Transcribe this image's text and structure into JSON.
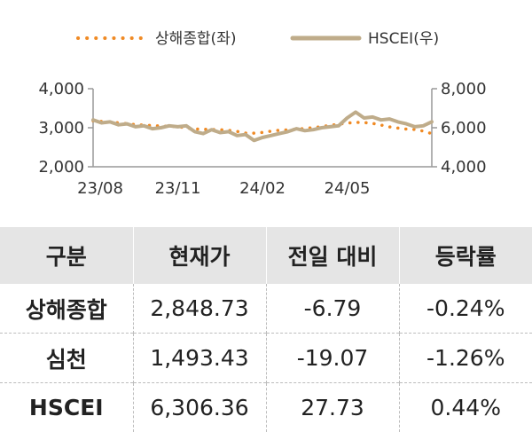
{
  "chart_data": {
    "type": "line",
    "legend": [
      {
        "name": "상해종합(좌)",
        "color": "#f08a24",
        "style": "dotted"
      },
      {
        "name": "HSCEI(우)",
        "color": "#bfac8a",
        "style": "solid"
      }
    ],
    "x_tick_labels": [
      "23/08",
      "23/11",
      "24/02",
      "24/05"
    ],
    "y_left_ticks": [
      "4,000",
      "3,000",
      "2,000"
    ],
    "y_right_ticks": [
      "8,000",
      "6,000",
      "4,000"
    ],
    "y_left_range": [
      2000,
      4000
    ],
    "y_right_range": [
      4000,
      8000
    ],
    "x_range_months": [
      0,
      12
    ],
    "series": [
      {
        "name": "상해종합(좌)",
        "axis": "left",
        "x": [
          0,
          0.5,
          1,
          1.5,
          2,
          2.5,
          3,
          3.5,
          4,
          4.5,
          5,
          5.5,
          6,
          6.5,
          7,
          7.5,
          8,
          8.5,
          9,
          9.5,
          10,
          10.5,
          11,
          11.5,
          12
        ],
        "values": [
          3180,
          3150,
          3120,
          3080,
          3060,
          3040,
          3030,
          2970,
          2960,
          2950,
          2920,
          2850,
          2880,
          2930,
          2950,
          2980,
          3020,
          3070,
          3120,
          3140,
          3100,
          3020,
          2970,
          2950,
          2849
        ]
      },
      {
        "name": "HSCEI(우)",
        "axis": "right",
        "x": [
          0,
          0.3,
          0.6,
          0.9,
          1.2,
          1.5,
          1.8,
          2.1,
          2.4,
          2.7,
          3,
          3.3,
          3.6,
          3.9,
          4.2,
          4.5,
          4.8,
          5.1,
          5.4,
          5.7,
          6,
          6.3,
          6.6,
          6.9,
          7.2,
          7.5,
          7.8,
          8.1,
          8.4,
          8.7,
          9,
          9.3,
          9.6,
          9.9,
          10.2,
          10.5,
          10.8,
          11.1,
          11.4,
          11.7,
          12
        ],
        "values": [
          6400,
          6250,
          6300,
          6150,
          6200,
          6050,
          6100,
          5950,
          6000,
          6100,
          6050,
          6100,
          5800,
          5700,
          5900,
          5750,
          5800,
          5600,
          5650,
          5350,
          5500,
          5600,
          5700,
          5800,
          5950,
          5850,
          5900,
          6000,
          6050,
          6100,
          6500,
          6800,
          6500,
          6550,
          6400,
          6450,
          6300,
          6200,
          6050,
          6100,
          6306
        ]
      }
    ]
  },
  "table": {
    "headers": [
      "구분",
      "현재가",
      "전일 대비",
      "등락률"
    ],
    "rows": [
      [
        "상해종합",
        "2,848.73",
        "-6.79",
        "-0.24%"
      ],
      [
        "심천",
        "1,493.43",
        "-19.07",
        "-1.26%"
      ],
      [
        "HSCEI",
        "6,306.36",
        "27.73",
        "0.44%"
      ]
    ]
  }
}
